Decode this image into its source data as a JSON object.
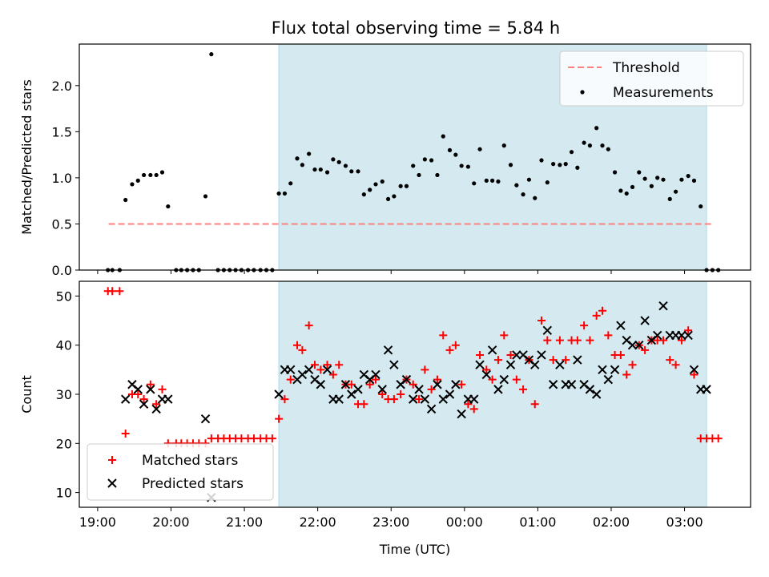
{
  "title": "Flux total observing time = 5.84 h",
  "colors": {
    "threshold": "#ff8080",
    "measurement": "#000000",
    "matched": "#ff0000",
    "predicted": "#000000",
    "observing_window": "#d4eaf0"
  },
  "chart_data": [
    {
      "type": "scatter",
      "name": "ratio",
      "ylabel": "Matched/Predicted stars",
      "xlabel": "",
      "xlim": [
        18.75,
        27.9
      ],
      "ylim": [
        0,
        2.45
      ],
      "yticks": [
        0,
        0.5,
        1.0,
        1.5,
        2.0
      ],
      "ytick_labels": [
        "0.0",
        "0.5",
        "1.0",
        "1.5",
        "2.0"
      ],
      "xticks": [
        19,
        20,
        21,
        22,
        23,
        24,
        25,
        26,
        27
      ],
      "shaded_span": [
        21.47,
        27.3
      ],
      "legend": {
        "position": "upper right",
        "entries": [
          "Threshold",
          "Measurements"
        ]
      },
      "series": [
        {
          "name": "Threshold",
          "kind": "dashed-line",
          "x": [
            19.15,
            27.4
          ],
          "y": [
            0.5,
            0.5
          ]
        },
        {
          "name": "Measurements",
          "kind": "dots",
          "x": [
            19.14,
            19.2,
            19.3,
            19.38,
            19.47,
            19.55,
            19.63,
            19.72,
            19.8,
            19.88,
            19.96,
            20.07,
            20.14,
            20.22,
            20.3,
            20.38,
            20.47,
            20.55,
            20.64,
            20.72,
            20.8,
            20.88,
            20.96,
            21.05,
            21.13,
            21.22,
            21.3,
            21.38,
            21.47,
            21.55,
            21.63,
            21.72,
            21.79,
            21.88,
            21.96,
            22.04,
            22.13,
            22.21,
            22.29,
            22.38,
            22.46,
            22.55,
            22.63,
            22.71,
            22.79,
            22.88,
            22.96,
            23.04,
            23.13,
            23.21,
            23.3,
            23.38,
            23.46,
            23.55,
            23.63,
            23.71,
            23.8,
            23.88,
            23.96,
            24.05,
            24.13,
            24.21,
            24.3,
            24.38,
            24.46,
            24.54,
            24.63,
            24.71,
            24.8,
            24.88,
            24.96,
            25.05,
            25.13,
            25.21,
            25.3,
            25.38,
            25.46,
            25.54,
            25.63,
            25.71,
            25.8,
            25.88,
            25.96,
            26.05,
            26.13,
            26.21,
            26.29,
            26.38,
            26.46,
            26.55,
            26.63,
            26.71,
            26.8,
            26.88,
            26.96,
            27.05,
            27.13,
            27.22,
            27.3,
            27.38,
            27.46
          ],
          "y": [
            0,
            0,
            0,
            0.76,
            0.93,
            0.97,
            1.03,
            1.03,
            1.03,
            1.06,
            0.69,
            0,
            0,
            0,
            0,
            0,
            0.8,
            2.34,
            0,
            0,
            0,
            0,
            0,
            0,
            0,
            0,
            0,
            0,
            0.83,
            0.83,
            0.94,
            1.21,
            1.14,
            1.26,
            1.09,
            1.09,
            1.06,
            1.2,
            1.17,
            1.13,
            1.07,
            1.07,
            0.82,
            0.87,
            0.93,
            0.96,
            0.77,
            0.8,
            0.91,
            0.91,
            1.13,
            1.03,
            1.2,
            1.19,
            1.03,
            1.45,
            1.3,
            1.25,
            1.13,
            1.12,
            0.94,
            1.31,
            0.97,
            0.97,
            0.96,
            1.35,
            1.14,
            0.92,
            0.82,
            0.98,
            0.78,
            1.19,
            0.95,
            1.15,
            1.14,
            1.15,
            1.28,
            1.11,
            1.38,
            1.35,
            1.54,
            1.35,
            1.31,
            1.06,
            0.86,
            0.83,
            0.9,
            1.06,
            0.99,
            0.91,
            1.0,
            0.98,
            0.77,
            0.85,
            0.98,
            1.02,
            0.97,
            0.69,
            0,
            0,
            0
          ]
        }
      ]
    },
    {
      "type": "scatter",
      "name": "counts",
      "ylabel": "Count",
      "xlabel": "Time (UTC)",
      "xlim": [
        18.75,
        27.9
      ],
      "ylim": [
        7,
        53
      ],
      "yticks": [
        10,
        20,
        30,
        40,
        50
      ],
      "ytick_labels": [
        "10",
        "20",
        "30",
        "40",
        "50"
      ],
      "xticks": [
        19,
        20,
        21,
        22,
        23,
        24,
        25,
        26,
        27
      ],
      "xtick_labels": [
        "19:00",
        "20:00",
        "21:00",
        "22:00",
        "23:00",
        "00:00",
        "01:00",
        "02:00",
        "03:00"
      ],
      "shaded_span": [
        21.47,
        27.3
      ],
      "legend": {
        "position": "lower left",
        "entries": [
          "Matched stars",
          "Predicted stars"
        ]
      },
      "series": [
        {
          "name": "Matched stars",
          "kind": "plus",
          "x": [
            19.14,
            19.2,
            19.3,
            19.38,
            19.47,
            19.55,
            19.63,
            19.72,
            19.8,
            19.88,
            19.96,
            20.07,
            20.14,
            20.22,
            20.3,
            20.38,
            20.47,
            20.55,
            20.64,
            20.72,
            20.8,
            20.88,
            20.96,
            21.05,
            21.13,
            21.22,
            21.3,
            21.38,
            21.47,
            21.55,
            21.63,
            21.72,
            21.79,
            21.88,
            21.96,
            22.04,
            22.13,
            22.21,
            22.29,
            22.38,
            22.46,
            22.55,
            22.63,
            22.71,
            22.79,
            22.88,
            22.96,
            23.04,
            23.13,
            23.21,
            23.3,
            23.38,
            23.46,
            23.55,
            23.63,
            23.71,
            23.8,
            23.88,
            23.96,
            24.05,
            24.13,
            24.21,
            24.3,
            24.38,
            24.46,
            24.54,
            24.63,
            24.71,
            24.8,
            24.88,
            24.96,
            25.05,
            25.13,
            25.21,
            25.3,
            25.38,
            25.46,
            25.54,
            25.63,
            25.71,
            25.8,
            25.88,
            25.96,
            26.05,
            26.13,
            26.21,
            26.29,
            26.38,
            26.46,
            26.55,
            26.63,
            26.71,
            26.8,
            26.88,
            26.96,
            27.05,
            27.13,
            27.22,
            27.3,
            27.38,
            27.46
          ],
          "y": [
            51,
            51,
            51,
            22,
            30,
            30,
            29,
            32,
            28,
            31,
            20,
            20,
            20,
            20,
            20,
            20,
            20,
            21,
            21,
            21,
            21,
            21,
            21,
            21,
            21,
            21,
            21,
            21,
            25,
            29,
            33,
            40,
            39,
            44,
            36,
            35,
            36,
            34,
            36,
            32,
            32,
            28,
            28,
            32,
            33,
            30,
            29,
            29,
            30,
            33,
            32,
            29,
            35,
            31,
            33,
            42,
            39,
            40,
            32,
            28,
            27,
            38,
            35,
            33,
            37,
            42,
            38,
            33,
            31,
            37,
            28,
            45,
            41,
            37,
            41,
            37,
            41,
            41,
            44,
            41,
            46,
            47,
            42,
            38,
            38,
            34,
            36,
            40,
            39,
            41,
            41,
            41,
            37,
            36,
            41,
            43,
            34,
            21,
            21,
            21,
            21
          ],
          "color": "#ff0000"
        },
        {
          "name": "Predicted stars",
          "kind": "cross",
          "x": [
            19.38,
            19.47,
            19.55,
            19.63,
            19.72,
            19.8,
            19.88,
            19.96,
            20.47,
            20.55,
            21.47,
            21.55,
            21.63,
            21.72,
            21.79,
            21.88,
            21.96,
            22.04,
            22.13,
            22.21,
            22.29,
            22.38,
            22.46,
            22.55,
            22.63,
            22.71,
            22.79,
            22.88,
            22.96,
            23.04,
            23.13,
            23.21,
            23.3,
            23.38,
            23.46,
            23.55,
            23.63,
            23.71,
            23.8,
            23.88,
            23.96,
            24.05,
            24.13,
            24.21,
            24.3,
            24.38,
            24.46,
            24.54,
            24.63,
            24.71,
            24.8,
            24.88,
            24.96,
            25.05,
            25.13,
            25.21,
            25.3,
            25.38,
            25.46,
            25.54,
            25.63,
            25.71,
            25.8,
            25.88,
            25.96,
            26.05,
            26.13,
            26.21,
            26.29,
            26.38,
            26.46,
            26.55,
            26.63,
            26.71,
            26.8,
            26.88,
            26.96,
            27.05,
            27.13,
            27.22,
            27.3
          ],
          "y": [
            29,
            32,
            31,
            28,
            31,
            27,
            29,
            29,
            25,
            9,
            30,
            35,
            35,
            33,
            34,
            35,
            33,
            32,
            35,
            29,
            29,
            32,
            30,
            31,
            34,
            33,
            34,
            31,
            39,
            36,
            32,
            33,
            29,
            31,
            29,
            27,
            32,
            29,
            30,
            32,
            26,
            29,
            29,
            36,
            34,
            39,
            31,
            33,
            36,
            38,
            38,
            37,
            36,
            38,
            43,
            32,
            36,
            32,
            32,
            37,
            32,
            31,
            30,
            35,
            33,
            35,
            44,
            41,
            40,
            40,
            45,
            41,
            42,
            48,
            42,
            42,
            42,
            42,
            35,
            31,
            31
          ],
          "color": "#000000"
        }
      ]
    }
  ]
}
